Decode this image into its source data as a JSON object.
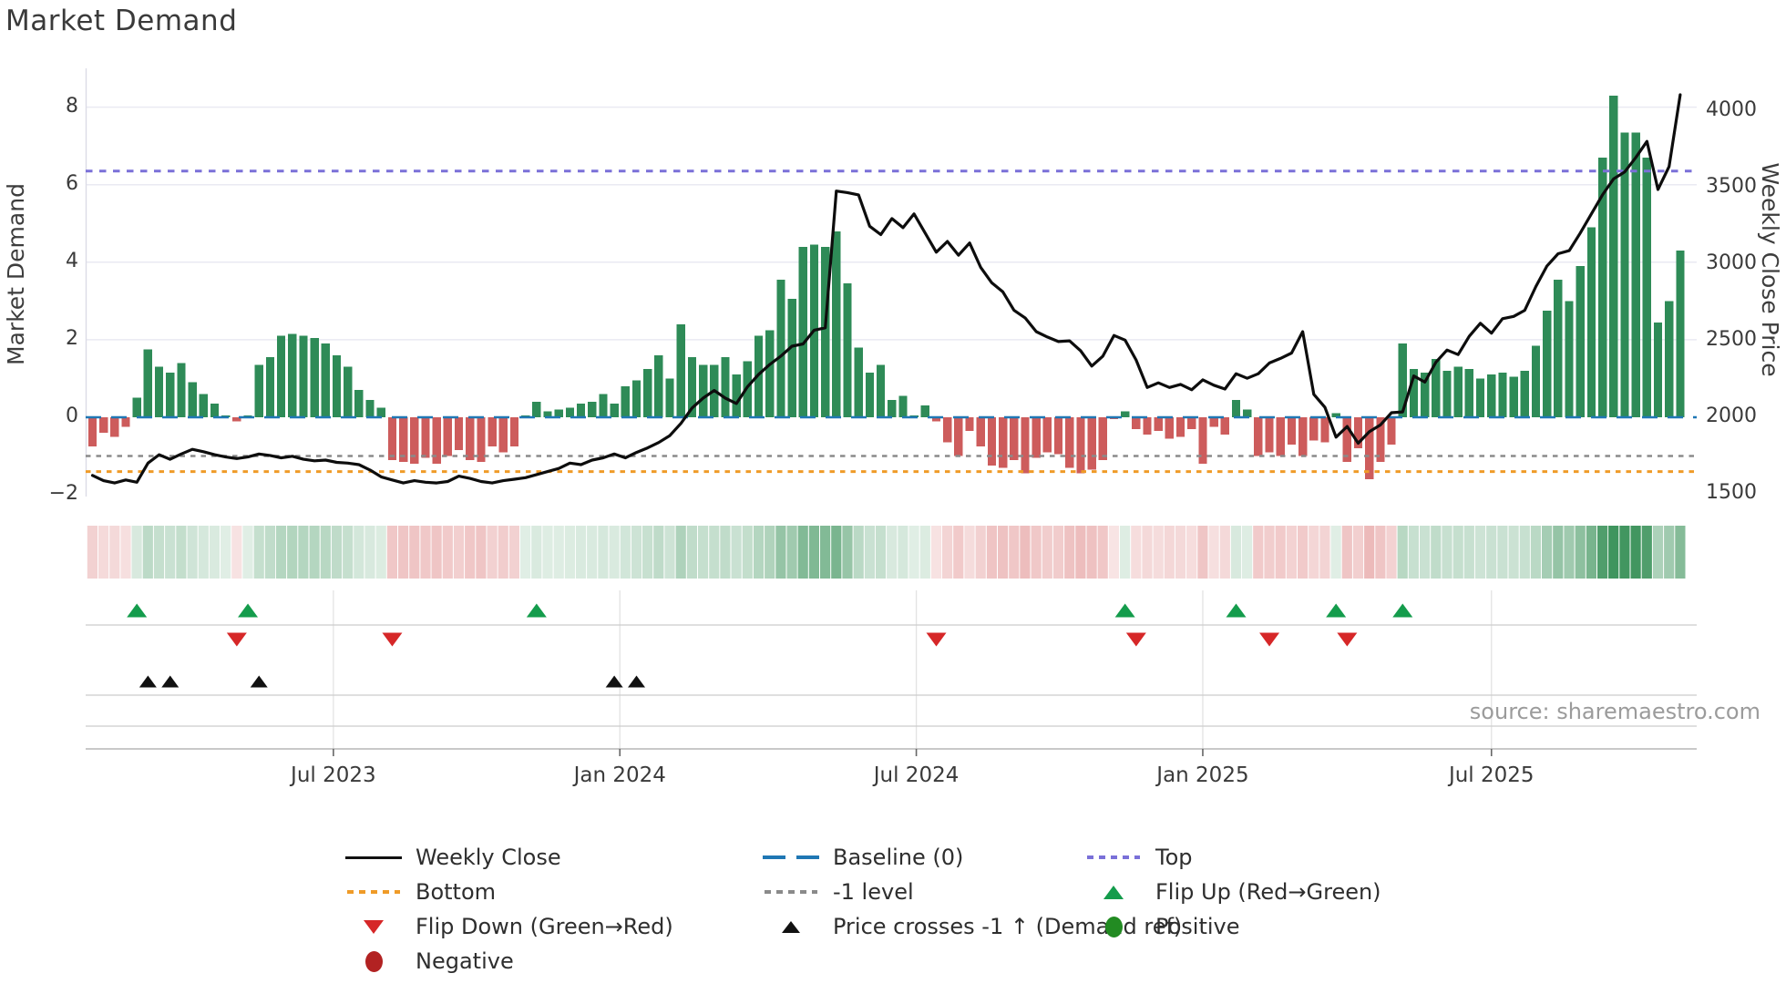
{
  "title": "Market Demand",
  "source": "source: sharemaestro.com",
  "axes": {
    "left_label": "Market Demand",
    "right_label": "Weekly Close Price",
    "left_ticks": [
      {
        "label": "8",
        "value": 8
      },
      {
        "label": "6",
        "value": 6
      },
      {
        "label": "4",
        "value": 4
      },
      {
        "label": "2",
        "value": 2
      },
      {
        "label": "0",
        "value": 0
      },
      {
        "label": "−2",
        "value": -2
      }
    ],
    "right_ticks": [
      {
        "label": "4000",
        "value": 4000
      },
      {
        "label": "3500",
        "value": 3500
      },
      {
        "label": "3000",
        "value": 3000
      },
      {
        "label": "2500",
        "value": 2500
      },
      {
        "label": "2000",
        "value": 2000
      },
      {
        "label": "1500",
        "value": 1500
      }
    ],
    "x_ticks": [
      {
        "label": "Jul 2023",
        "week": 21.7
      },
      {
        "label": "Jan 2024",
        "week": 47.5
      },
      {
        "label": "Jul 2024",
        "week": 74.2
      },
      {
        "label": "Jan 2025",
        "week": 100.0
      },
      {
        "label": "Jul 2025",
        "week": 126.0
      }
    ]
  },
  "chart_data": {
    "type": "bar+line",
    "title": "Market Demand",
    "x_start_date": "2023-01-30",
    "frequency": "weekly",
    "left_axis": {
      "label": "Market Demand",
      "range": [
        -2.1,
        9.0
      ]
    },
    "right_axis": {
      "label": "Weekly Close Price",
      "range": [
        1475,
        4180
      ]
    },
    "reference_levels": {
      "baseline": 0,
      "top": 6.35,
      "minus1": -1,
      "bottom": -1.4
    },
    "demand": [
      -0.75,
      -0.4,
      -0.5,
      -0.25,
      0.5,
      1.75,
      1.3,
      1.15,
      1.4,
      0.9,
      0.6,
      0.35,
      0.05,
      -0.1,
      0.05,
      1.35,
      1.55,
      2.1,
      2.15,
      2.1,
      2.05,
      1.9,
      1.6,
      1.3,
      0.7,
      0.45,
      0.25,
      -1.1,
      -1.15,
      -1.2,
      -1.05,
      -1.2,
      -1.0,
      -0.85,
      -1.1,
      -1.15,
      -0.75,
      -0.9,
      -0.75,
      0.05,
      0.4,
      0.15,
      0.2,
      0.25,
      0.35,
      0.4,
      0.6,
      0.35,
      0.8,
      0.95,
      1.25,
      1.6,
      1.0,
      2.4,
      1.55,
      1.35,
      1.35,
      1.55,
      1.1,
      1.45,
      2.1,
      2.25,
      3.55,
      3.05,
      4.4,
      4.45,
      4.4,
      4.8,
      3.45,
      1.8,
      1.15,
      1.35,
      0.45,
      0.55,
      0.05,
      0.3,
      -0.1,
      -0.65,
      -1.0,
      -0.35,
      -0.75,
      -1.25,
      -1.3,
      -1.1,
      -1.45,
      -1.05,
      -0.9,
      -0.95,
      -1.3,
      -1.45,
      -1.35,
      -1.1,
      -0.05,
      0.15,
      -0.3,
      -0.45,
      -0.35,
      -0.55,
      -0.5,
      -0.3,
      -1.2,
      -0.25,
      -0.45,
      0.45,
      0.2,
      -1.0,
      -0.9,
      -1.0,
      -0.7,
      -1.0,
      -0.6,
      -0.65,
      0.1,
      -1.15,
      -0.8,
      -1.6,
      -1.15,
      -0.7,
      1.9,
      1.25,
      1.15,
      1.5,
      1.2,
      1.3,
      1.25,
      1.0,
      1.1,
      1.15,
      1.05,
      1.2,
      1.85,
      2.75,
      3.55,
      3.0,
      3.9,
      4.9,
      6.7,
      8.3,
      7.35,
      7.35,
      6.7,
      2.45,
      3.0,
      4.3
    ],
    "weekly_close": [
      1620,
      1585,
      1570,
      1590,
      1575,
      1700,
      1755,
      1725,
      1760,
      1790,
      1775,
      1755,
      1740,
      1730,
      1740,
      1760,
      1750,
      1735,
      1745,
      1725,
      1715,
      1720,
      1705,
      1700,
      1690,
      1655,
      1610,
      1590,
      1570,
      1585,
      1575,
      1570,
      1580,
      1615,
      1600,
      1580,
      1570,
      1585,
      1595,
      1605,
      1625,
      1645,
      1665,
      1700,
      1690,
      1720,
      1735,
      1760,
      1735,
      1770,
      1800,
      1835,
      1880,
      1960,
      2060,
      2125,
      2175,
      2125,
      2090,
      2200,
      2280,
      2345,
      2400,
      2465,
      2480,
      2570,
      2585,
      3480,
      3470,
      3455,
      3250,
      3195,
      3300,
      3240,
      3330,
      3205,
      3080,
      3150,
      3060,
      3140,
      2980,
      2880,
      2820,
      2700,
      2650,
      2560,
      2525,
      2495,
      2500,
      2435,
      2335,
      2400,
      2535,
      2505,
      2375,
      2195,
      2225,
      2195,
      2215,
      2180,
      2245,
      2210,
      2185,
      2285,
      2255,
      2285,
      2355,
      2385,
      2420,
      2560,
      2150,
      2065,
      1870,
      1940,
      1830,
      1905,
      1950,
      2030,
      2035,
      2270,
      2230,
      2360,
      2440,
      2410,
      2530,
      2615,
      2550,
      2645,
      2660,
      2700,
      2855,
      2990,
      3070,
      3090,
      3205,
      3330,
      3455,
      3560,
      3605,
      3700,
      3805,
      3490,
      3640,
      4110
    ],
    "flip_up_weeks": [
      4,
      14,
      40,
      93,
      103,
      112,
      118
    ],
    "flip_down_weeks": [
      13,
      27,
      76,
      94,
      106,
      113
    ],
    "price_cross_weeks": [
      5,
      7,
      15,
      47,
      49
    ],
    "heatmap": "per-week cell tinted by demand sign/magnitude (green positive, red negative)"
  },
  "legend": {
    "items": [
      {
        "icon": "line-black",
        "label": "Weekly Close"
      },
      {
        "icon": "dash-blue",
        "label": "Baseline (0)"
      },
      {
        "icon": "dot-purple",
        "label": "Top"
      },
      {
        "icon": "dot-orange",
        "label": "Bottom"
      },
      {
        "icon": "dot-gray",
        "label": "-1 level"
      },
      {
        "icon": "tri-up-green",
        "label": "Flip Up (Red→Green)"
      },
      {
        "icon": "tri-down-red",
        "label": "Flip Down (Green→Red)"
      },
      {
        "icon": "tri-up-black",
        "label": "Price crosses -1 ↑ (Demand ref)"
      },
      {
        "icon": "circle-green",
        "label": "Positive"
      },
      {
        "icon": "circle-red",
        "label": "Negative"
      }
    ]
  },
  "colors": {
    "bar_positive": "#2E8B57",
    "bar_negative": "#CD5C5C",
    "baseline": "#1F77B4",
    "top_line": "#7A70D8",
    "bottom_line": "#EF9B28",
    "minus1_line": "#8A8A8A",
    "price_line": "#0D0D0D",
    "flip_up_marker": "#149C4C",
    "flip_down_marker": "#D62728",
    "price_cross_marker": "#111111",
    "heat_positive_rgb": "47,140,80",
    "heat_negative_rgb": "211,95,95",
    "grid": "#EAEAF2",
    "row_line": "#CCCCCC",
    "axis_line": "#B5B5B5"
  }
}
